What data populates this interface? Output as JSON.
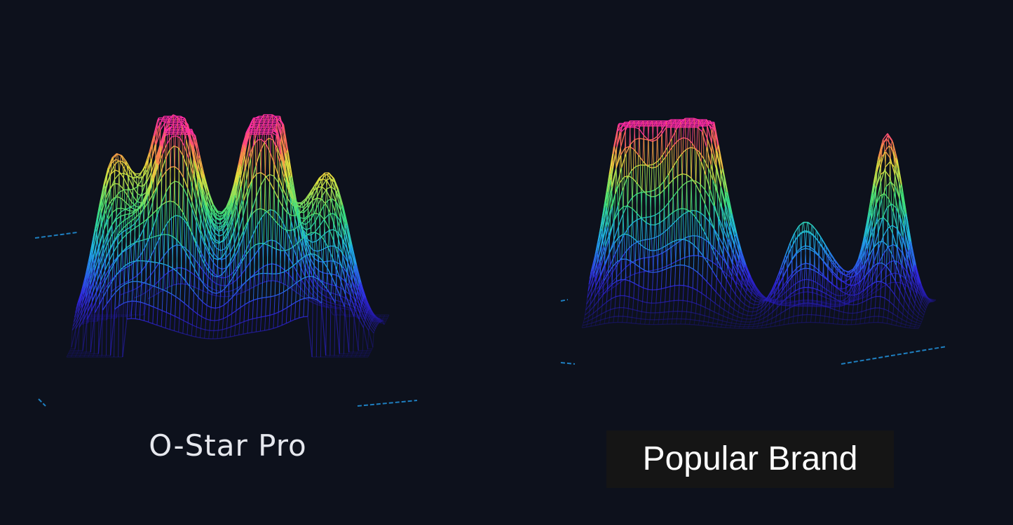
{
  "panels": [
    {
      "label": "O-Star Pro"
    },
    {
      "label": "Popular Brand"
    }
  ],
  "colors": {
    "background": "#0d111c",
    "low": "#2a1fd6",
    "mid_low": "#1fb8e0",
    "mid": "#3fe07a",
    "mid_high": "#e8e040",
    "high": "#ff2fa8",
    "label_box": "#151515"
  }
}
